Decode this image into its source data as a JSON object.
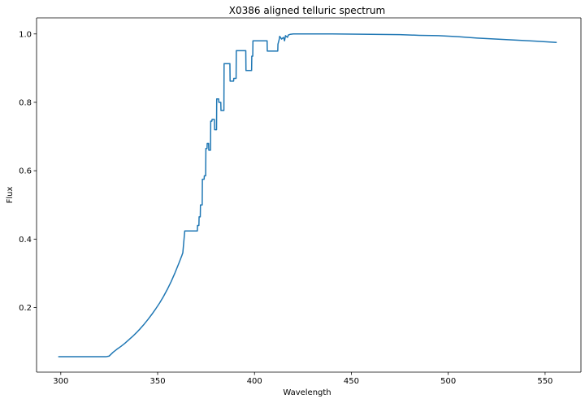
{
  "chart_data": {
    "type": "line",
    "title": "X0386 aligned telluric spectrum",
    "xlabel": "Wavelength",
    "ylabel": "Flux",
    "xlim": [
      287.5,
      568.5
    ],
    "ylim": [
      0.011,
      1.047
    ],
    "xticks": [
      300,
      350,
      400,
      450,
      500,
      550
    ],
    "yticks": [
      0.2,
      0.4,
      0.6,
      0.8,
      1.0
    ],
    "xtick_labels": [
      "300",
      "350",
      "400",
      "450",
      "500",
      "550"
    ],
    "ytick_labels": [
      "0.2",
      "0.4",
      "0.6",
      "0.8",
      "1.0"
    ],
    "grid": false,
    "legend": "none",
    "series": [
      {
        "color": "#1f77b4",
        "x": [
          298.7,
          323.3,
          325.0,
          327.0,
          329.0,
          331.0,
          333.0,
          335.0,
          337.0,
          339.0,
          341.0,
          343.0,
          345.0,
          347.0,
          349.0,
          351.0,
          353.0,
          355.0,
          357.0,
          359.0,
          361.0,
          362.5,
          363.0,
          364.0,
          370.5,
          370.6,
          371.3,
          371.4,
          372.0,
          372.1,
          373.0,
          373.1,
          374.0,
          374.1,
          374.8,
          374.9,
          375.5,
          375.6,
          376.3,
          376.4,
          377.3,
          377.4,
          378.0,
          378.1,
          379.3,
          379.4,
          380.4,
          380.5,
          381.5,
          381.6,
          382.6,
          382.7,
          384.2,
          384.3,
          387.3,
          387.4,
          389.2,
          389.3,
          390.5,
          390.6,
          395.5,
          395.6,
          398.5,
          398.6,
          399.1,
          399.2,
          406.5,
          406.6,
          412.0,
          412.1,
          412.8,
          413.0,
          414.0,
          415.0,
          415.5,
          416.0,
          417.0,
          417.5,
          418.5,
          420.0,
          440.0,
          460.0,
          475.0,
          485.0,
          495.0,
          505.0,
          515.0,
          525.0,
          535.0,
          545.0,
          556.0
        ],
        "y": [
          0.056,
          0.056,
          0.058,
          0.069,
          0.078,
          0.086,
          0.095,
          0.105,
          0.115,
          0.126,
          0.138,
          0.151,
          0.165,
          0.18,
          0.196,
          0.213,
          0.232,
          0.253,
          0.276,
          0.302,
          0.33,
          0.352,
          0.36,
          0.424,
          0.424,
          0.44,
          0.44,
          0.465,
          0.465,
          0.5,
          0.5,
          0.575,
          0.575,
          0.585,
          0.585,
          0.665,
          0.665,
          0.68,
          0.68,
          0.66,
          0.66,
          0.745,
          0.745,
          0.75,
          0.75,
          0.72,
          0.72,
          0.81,
          0.81,
          0.8,
          0.8,
          0.776,
          0.776,
          0.913,
          0.913,
          0.862,
          0.862,
          0.87,
          0.87,
          0.951,
          0.951,
          0.893,
          0.893,
          0.935,
          0.935,
          0.98,
          0.98,
          0.95,
          0.95,
          0.97,
          0.985,
          0.993,
          0.985,
          0.99,
          0.98,
          0.995,
          0.99,
          0.997,
          0.999,
          1.0,
          1.0,
          0.999,
          0.998,
          0.996,
          0.995,
          0.992,
          0.988,
          0.985,
          0.982,
          0.979,
          0.975
        ]
      }
    ]
  }
}
